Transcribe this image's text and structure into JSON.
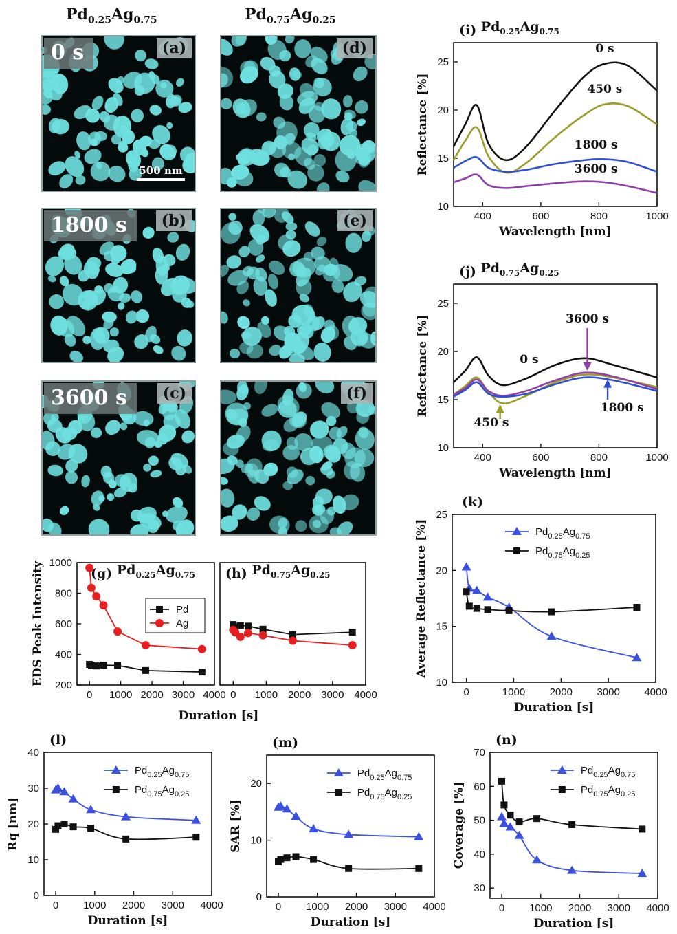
{
  "headings": {
    "col1": {
      "base": "Pd",
      "s1": "0.25",
      "mid": "Ag",
      "s2": "0.75"
    },
    "col2": {
      "base": "Pd",
      "s1": "0.75",
      "mid": "Ag",
      "s2": "0.25"
    }
  },
  "sem_panels": [
    {
      "id": "a",
      "label": "(a)",
      "time": "0 s",
      "scalebar": "500 nm",
      "seed": 11
    },
    {
      "id": "b",
      "label": "(b)",
      "time": "1800 s",
      "seed": 23
    },
    {
      "id": "c",
      "label": "(c)",
      "time": "3600 s",
      "seed": 37
    },
    {
      "id": "d",
      "label": "(d)",
      "seed": 41
    },
    {
      "id": "e",
      "label": "(e)",
      "seed": 53
    },
    {
      "id": "f",
      "label": "(f)",
      "seed": 67
    }
  ],
  "colors": {
    "particle": "#6fe0e0",
    "black": "#111111",
    "red": "#e62020",
    "olive": "#9c9c28",
    "blue": "#3050d0",
    "purple": "#9040a8",
    "triangle_blue": "#3a50e0"
  },
  "chart_data": [
    {
      "id": "g",
      "type": "line",
      "title_prefix": "(g) ",
      "title": {
        "base": "Pd",
        "s1": "0.25",
        "mid": "Ag",
        "s2": "0.75"
      },
      "ylabel": "EDS Peak Intensity",
      "xlabel": "",
      "xlim": [
        -400,
        4000
      ],
      "ylim": [
        200,
        1000
      ],
      "xticks": [
        0,
        1000,
        2000,
        3000,
        4000
      ],
      "yticks": [
        200,
        400,
        600,
        800,
        1000
      ],
      "legend": "top-right-inside",
      "series": [
        {
          "name": "Pd",
          "color": "#111111",
          "marker": "square",
          "smooth": false,
          "x": [
            0,
            60,
            220,
            450,
            900,
            1800,
            3600
          ],
          "y": [
            335,
            330,
            325,
            330,
            328,
            295,
            285
          ]
        },
        {
          "name": "Ag",
          "color": "#e62020",
          "marker": "circle",
          "smooth": false,
          "x": [
            0,
            60,
            220,
            450,
            900,
            1800,
            3600
          ],
          "y": [
            965,
            835,
            780,
            720,
            550,
            460,
            435
          ]
        }
      ]
    },
    {
      "id": "h",
      "type": "line",
      "title_prefix": "(h) ",
      "title": {
        "base": "Pd",
        "s1": "0.75",
        "mid": "Ag",
        "s2": "0.25"
      },
      "xlabel": "",
      "ylabel": "",
      "xlim": [
        -400,
        4000
      ],
      "ylim": [
        200,
        1000
      ],
      "xticks": [
        0,
        1000,
        2000,
        3000,
        4000
      ],
      "yticks": [],
      "series": [
        {
          "color": "#111111",
          "marker": "square",
          "smooth": false,
          "x": [
            0,
            60,
            220,
            450,
            900,
            1800,
            3600
          ],
          "y": [
            595,
            580,
            590,
            585,
            565,
            530,
            545
          ]
        },
        {
          "color": "#e62020",
          "marker": "circle",
          "smooth": false,
          "x": [
            0,
            60,
            220,
            450,
            900,
            1800,
            3600
          ],
          "y": [
            560,
            545,
            515,
            540,
            525,
            490,
            460
          ]
        }
      ]
    },
    {
      "id": "gh_axis",
      "xlabel": "Duration [s]"
    },
    {
      "id": "i",
      "type": "line",
      "title_prefix": "(i) ",
      "title": {
        "base": "Pd",
        "s1": "0.25",
        "mid": "Ag",
        "s2": "0.75"
      },
      "xlabel": "Wavelength [nm]",
      "ylabel": "Reflectance [%]",
      "xlim": [
        300,
        1000
      ],
      "ylim": [
        10,
        27
      ],
      "xticks": [
        400,
        600,
        800,
        1000
      ],
      "yticks": [
        10,
        15,
        20,
        25
      ],
      "series": [
        {
          "color": "#111111",
          "smooth": true,
          "x": [
            300,
            340,
            380,
            420,
            480,
            550,
            650,
            750,
            820,
            900,
            1000
          ],
          "y": [
            16.2,
            18.5,
            20.5,
            16.5,
            14.8,
            16.2,
            20.0,
            23.5,
            24.8,
            24.6,
            22.0
          ]
        },
        {
          "color": "#9c9c28",
          "smooth": true,
          "x": [
            300,
            340,
            380,
            420,
            480,
            550,
            650,
            750,
            820,
            900,
            1000
          ],
          "y": [
            14.8,
            16.8,
            18.2,
            15.2,
            13.5,
            14.5,
            17.2,
            19.5,
            20.6,
            20.4,
            18.5
          ]
        },
        {
          "color": "#3050d0",
          "smooth": true,
          "x": [
            300,
            340,
            380,
            420,
            480,
            550,
            650,
            750,
            820,
            900,
            1000
          ],
          "y": [
            14.0,
            14.7,
            15.1,
            14.0,
            13.6,
            13.8,
            14.4,
            14.8,
            14.9,
            14.6,
            13.6
          ]
        },
        {
          "color": "#9040a8",
          "smooth": true,
          "x": [
            300,
            340,
            380,
            420,
            480,
            550,
            650,
            750,
            820,
            900,
            1000
          ],
          "y": [
            12.5,
            12.9,
            13.3,
            12.2,
            11.9,
            12.1,
            12.4,
            12.6,
            12.5,
            12.1,
            11.4
          ]
        }
      ],
      "annotations": [
        {
          "text": "0 s",
          "x": 820,
          "y": 26.0
        },
        {
          "text": "450 s",
          "x": 820,
          "y": 21.8
        },
        {
          "text": "1800 s",
          "x": 790,
          "y": 16.0
        },
        {
          "text": "3600 s",
          "x": 790,
          "y": 13.5
        }
      ]
    },
    {
      "id": "j",
      "type": "line",
      "title_prefix": "(j) ",
      "title": {
        "base": "Pd",
        "s1": "0.75",
        "mid": "Ag",
        "s2": "0.25"
      },
      "xlabel": "Wavelength [nm]",
      "ylabel": "Reflectance [%]",
      "xlim": [
        300,
        1000
      ],
      "ylim": [
        10,
        27
      ],
      "xticks": [
        400,
        600,
        800,
        1000
      ],
      "yticks": [
        10,
        15,
        20,
        25
      ],
      "series": [
        {
          "color": "#111111",
          "smooth": true,
          "x": [
            300,
            340,
            380,
            420,
            470,
            550,
            650,
            750,
            850,
            1000
          ],
          "y": [
            16.8,
            18.0,
            19.4,
            17.5,
            16.5,
            17.2,
            18.6,
            19.3,
            18.6,
            17.3
          ]
        },
        {
          "color": "#9c9c28",
          "smooth": true,
          "x": [
            300,
            340,
            380,
            420,
            470,
            550,
            650,
            750,
            850,
            1000
          ],
          "y": [
            15.5,
            16.4,
            17.3,
            15.8,
            14.6,
            15.4,
            16.8,
            17.6,
            17.3,
            16.3
          ]
        },
        {
          "color": "#9040a8",
          "smooth": true,
          "x": [
            300,
            340,
            380,
            420,
            470,
            550,
            650,
            750,
            850,
            1000
          ],
          "y": [
            15.5,
            16.2,
            17.1,
            15.9,
            15.4,
            15.9,
            17.0,
            17.8,
            17.4,
            16.1
          ]
        },
        {
          "color": "#3050d0",
          "smooth": true,
          "x": [
            300,
            340,
            380,
            420,
            470,
            550,
            650,
            750,
            850,
            1000
          ],
          "y": [
            15.3,
            16.0,
            16.8,
            15.6,
            15.3,
            15.6,
            16.6,
            17.3,
            17.0,
            15.9
          ]
        }
      ],
      "annotations": [
        {
          "text": "0 s",
          "x": 560,
          "y": 18.8
        },
        {
          "text": "3600 s",
          "x": 760,
          "y": 23.0,
          "arrow_to": [
            760,
            18.0
          ],
          "arrow_color": "#9040a8"
        },
        {
          "text": "1800 s",
          "x": 880,
          "y": 13.8,
          "arrow_from": [
            830,
            15.0
          ],
          "arrow_to": [
            830,
            17.1
          ],
          "arrow_color": "#3050d0"
        },
        {
          "text": "450 s",
          "x": 430,
          "y": 12.2,
          "arrow_from": [
            460,
            13.0
          ],
          "arrow_to": [
            460,
            14.5
          ],
          "arrow_color": "#9c9c28"
        }
      ]
    },
    {
      "id": "k",
      "type": "line",
      "title_prefix": "(k)",
      "xlabel": "Duration [s]",
      "ylabel": "Average Reflectance [%]",
      "xlim": [
        -300,
        4000
      ],
      "ylim": [
        10,
        25
      ],
      "xticks": [
        0,
        1000,
        2000,
        3000,
        4000
      ],
      "yticks": [
        10,
        15,
        20,
        25
      ],
      "legend": "top-right-inside",
      "series": [
        {
          "name": {
            "base": "Pd",
            "s1": "0.25",
            "mid": "Ag",
            "s2": "0.75"
          },
          "color": "#3a50e0",
          "marker": "triangle",
          "smooth": true,
          "x": [
            0,
            60,
            220,
            450,
            900,
            1800,
            3600
          ],
          "y": [
            20.3,
            18.4,
            18.2,
            17.6,
            16.7,
            14.1,
            12.2
          ]
        },
        {
          "name": {
            "base": "Pd",
            "s1": "0.75",
            "mid": "Ag",
            "s2": "0.25"
          },
          "color": "#111111",
          "marker": "square",
          "smooth": true,
          "x": [
            0,
            60,
            220,
            450,
            900,
            1800,
            3600
          ],
          "y": [
            18.1,
            16.8,
            16.6,
            16.5,
            16.4,
            16.3,
            16.7
          ]
        }
      ]
    },
    {
      "id": "l",
      "type": "line",
      "title_prefix": "(l)",
      "xlabel": "Duration [s]",
      "ylabel": "Rq [nm]",
      "xlim": [
        -300,
        4000
      ],
      "ylim": [
        0,
        40
      ],
      "xticks": [
        0,
        1000,
        2000,
        3000,
        4000
      ],
      "yticks": [
        0,
        10,
        20,
        30,
        40
      ],
      "legend": "top-right-inside",
      "series": [
        {
          "name": {
            "base": "Pd",
            "s1": "0.25",
            "mid": "Ag",
            "s2": "0.75"
          },
          "color": "#3a50e0",
          "marker": "triangle",
          "smooth": true,
          "x": [
            0,
            60,
            220,
            450,
            900,
            1800,
            3600
          ],
          "y": [
            29.5,
            30.0,
            29.0,
            27.0,
            24.0,
            22.0,
            21.0
          ]
        },
        {
          "name": {
            "base": "Pd",
            "s1": "0.75",
            "mid": "Ag",
            "s2": "0.25"
          },
          "color": "#111111",
          "marker": "square",
          "smooth": true,
          "x": [
            0,
            60,
            220,
            450,
            900,
            1800,
            3600
          ],
          "y": [
            18.5,
            19.5,
            20.0,
            19.2,
            18.8,
            15.8,
            16.3
          ]
        }
      ]
    },
    {
      "id": "m",
      "type": "line",
      "title_prefix": "(m)",
      "xlabel": "Duration [s]",
      "ylabel": "SAR [%]",
      "xlim": [
        -300,
        4000
      ],
      "ylim": [
        0,
        25
      ],
      "xticks": [
        0,
        1000,
        2000,
        3000,
        4000
      ],
      "yticks": [
        0,
        10,
        20
      ],
      "legend": "top-right-inside",
      "series": [
        {
          "name": {
            "base": "Pd",
            "s1": "0.25",
            "mid": "Ag",
            "s2": "0.75"
          },
          "color": "#3a50e0",
          "marker": "triangle",
          "smooth": true,
          "x": [
            0,
            60,
            220,
            450,
            900,
            1800,
            3600
          ],
          "y": [
            15.8,
            16.0,
            15.5,
            14.2,
            12.0,
            11.0,
            10.6
          ]
        },
        {
          "name": {
            "base": "Pd",
            "s1": "0.75",
            "mid": "Ag",
            "s2": "0.25"
          },
          "color": "#111111",
          "marker": "square",
          "smooth": true,
          "x": [
            0,
            60,
            220,
            450,
            900,
            1800,
            3600
          ],
          "y": [
            6.2,
            6.6,
            6.9,
            7.1,
            6.6,
            5.0,
            5.0
          ]
        }
      ]
    },
    {
      "id": "n",
      "type": "line",
      "title_prefix": "(n)",
      "xlabel": "Duration [s]",
      "ylabel": "Coverage [%]",
      "xlim": [
        -300,
        4000
      ],
      "ylim": [
        27,
        70
      ],
      "xticks": [
        0,
        1000,
        2000,
        3000,
        4000
      ],
      "yticks": [
        30,
        40,
        50,
        60,
        70
      ],
      "legend": "top-right-inside",
      "series": [
        {
          "name": {
            "base": "Pd",
            "s1": "0.25",
            "mid": "Ag",
            "s2": "0.75"
          },
          "color": "#3a50e0",
          "marker": "triangle",
          "smooth": true,
          "x": [
            0,
            60,
            220,
            450,
            900,
            1800,
            3600
          ],
          "y": [
            51.0,
            49.0,
            48.0,
            45.5,
            38.3,
            35.2,
            34.3
          ]
        },
        {
          "name": {
            "base": "Pd",
            "s1": "0.75",
            "mid": "Ag",
            "s2": "0.25"
          },
          "color": "#111111",
          "marker": "square",
          "smooth": true,
          "x": [
            0,
            60,
            220,
            450,
            900,
            1800,
            3600
          ],
          "y": [
            61.5,
            54.5,
            51.5,
            49.5,
            50.5,
            48.7,
            47.4
          ]
        }
      ]
    }
  ]
}
